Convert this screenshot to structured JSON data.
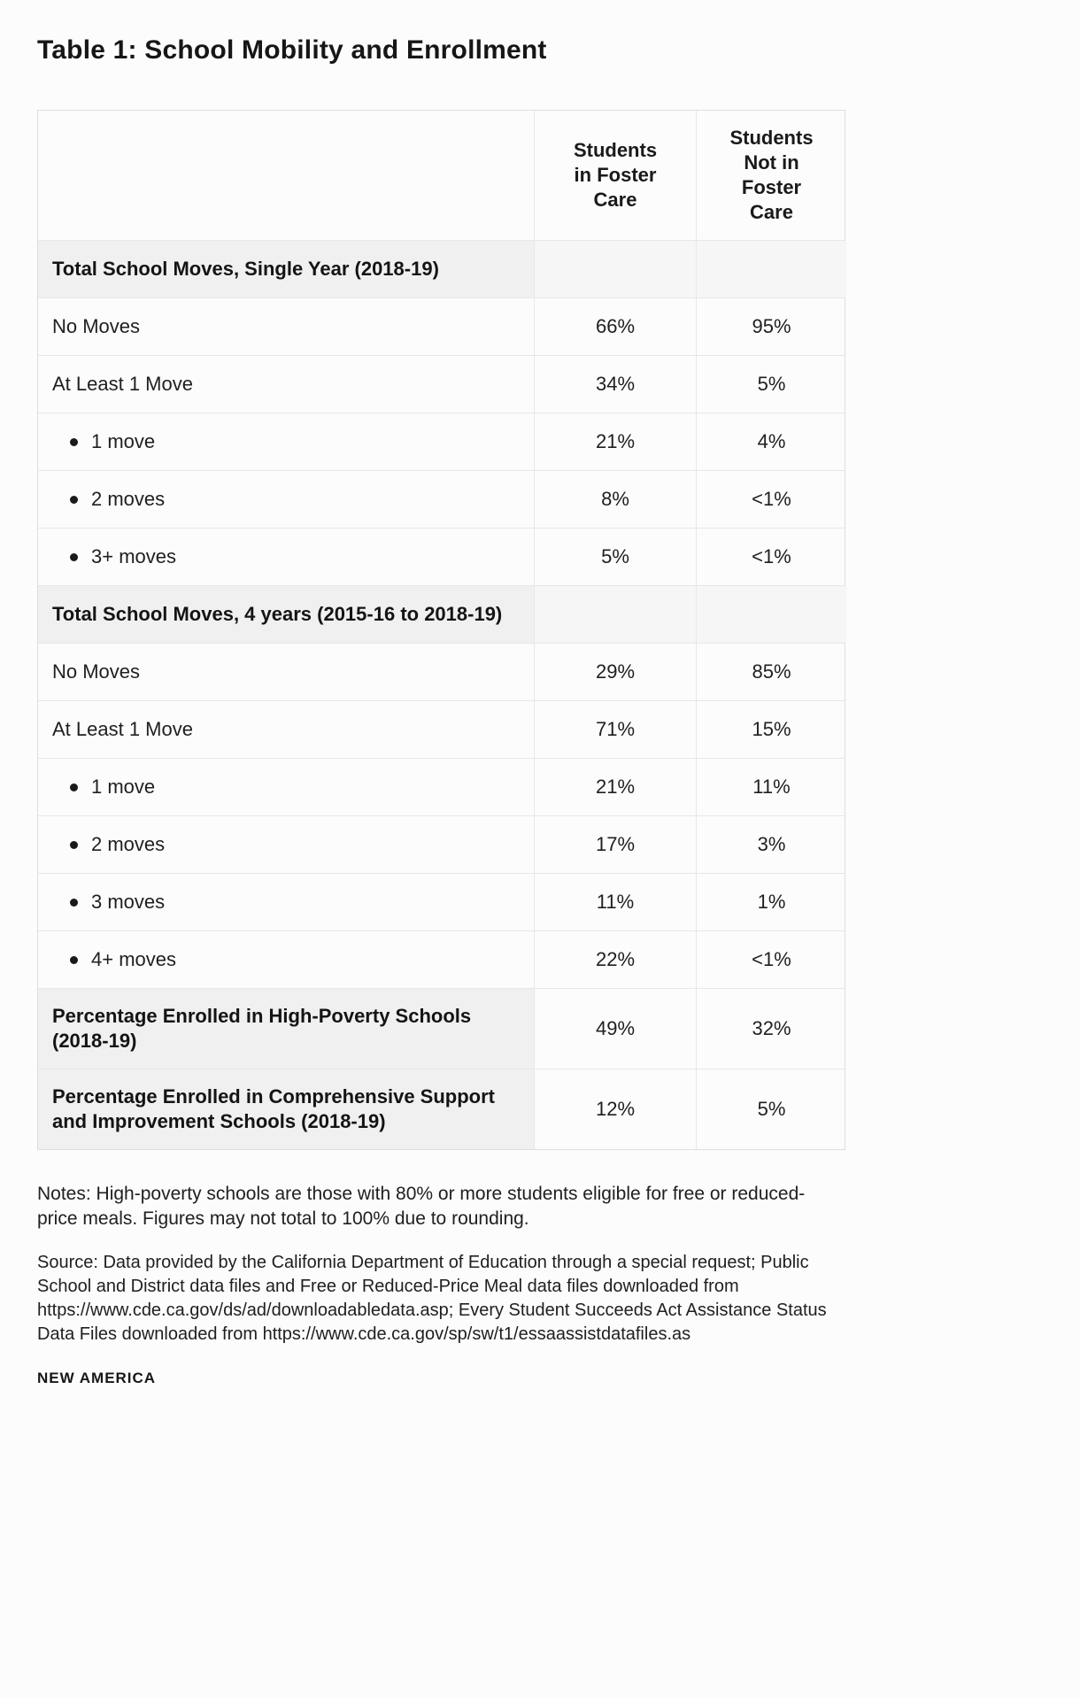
{
  "page": {
    "title": "Table 1: School Mobility and Enrollment",
    "notes": "Notes: High-poverty schools are those with 80% or more students eligible for free or reduced-price meals. Figures may not total to 100% due to rounding.",
    "source": "Source: Data provided by the California Department of Education through a special request; Public School and District data files and Free or Reduced-Price Meal data files downloaded from https://www.cde.ca.gov/ds/ad/downloadabledata.asp; Every Student Succeeds Act Assistance Status Data Files downloaded from https://www.cde.ca.gov/sp/sw/t1/essaassistdatafiles.as",
    "brand": "NEW AMERICA"
  },
  "colors": {
    "page_bg": "#fcfcfc",
    "section_row_bg": "#f0f0f0",
    "section_value_bg": "#f6f6f6",
    "table_border": "#dedede",
    "text": "#1f1f1f"
  },
  "chart_data": {
    "type": "table",
    "title": "Table 1: School Mobility and Enrollment",
    "columns": {
      "label": "",
      "foster": "Students in Foster Care",
      "not_foster": "Students Not in Foster Care"
    },
    "rows": [
      {
        "kind": "section",
        "label": "Total School Moves, Single Year (2018-19)",
        "foster": "",
        "not_foster": ""
      },
      {
        "kind": "data",
        "label": "No Moves",
        "foster": "66%",
        "not_foster": "95%"
      },
      {
        "kind": "data",
        "label": "At Least 1 Move",
        "foster": "34%",
        "not_foster": "5%"
      },
      {
        "kind": "sub",
        "label": "1 move",
        "foster": "21%",
        "not_foster": "4%"
      },
      {
        "kind": "sub",
        "label": "2 moves",
        "foster": "8%",
        "not_foster": "<1%"
      },
      {
        "kind": "sub",
        "label": "3+ moves",
        "foster": "5%",
        "not_foster": "<1%"
      },
      {
        "kind": "section",
        "label": "Total School Moves, 4 years (2015-16 to 2018-19)",
        "foster": "",
        "not_foster": ""
      },
      {
        "kind": "data",
        "label": "No Moves",
        "foster": "29%",
        "not_foster": "85%"
      },
      {
        "kind": "data",
        "label": "At Least 1 Move",
        "foster": "71%",
        "not_foster": "15%"
      },
      {
        "kind": "sub",
        "label": "1 move",
        "foster": "21%",
        "not_foster": "11%"
      },
      {
        "kind": "sub",
        "label": "2 moves",
        "foster": "17%",
        "not_foster": "3%"
      },
      {
        "kind": "sub",
        "label": "3 moves",
        "foster": "11%",
        "not_foster": "1%"
      },
      {
        "kind": "sub",
        "label": "4+ moves",
        "foster": "22%",
        "not_foster": "<1%"
      },
      {
        "kind": "summary",
        "label": "Percentage Enrolled in High-Poverty Schools (2018-19)",
        "foster": "49%",
        "not_foster": "32%"
      },
      {
        "kind": "summary",
        "label": "Percentage Enrolled in Comprehensive Support and Improvement Schools (2018-19)",
        "foster": "12%",
        "not_foster": "5%"
      }
    ]
  }
}
